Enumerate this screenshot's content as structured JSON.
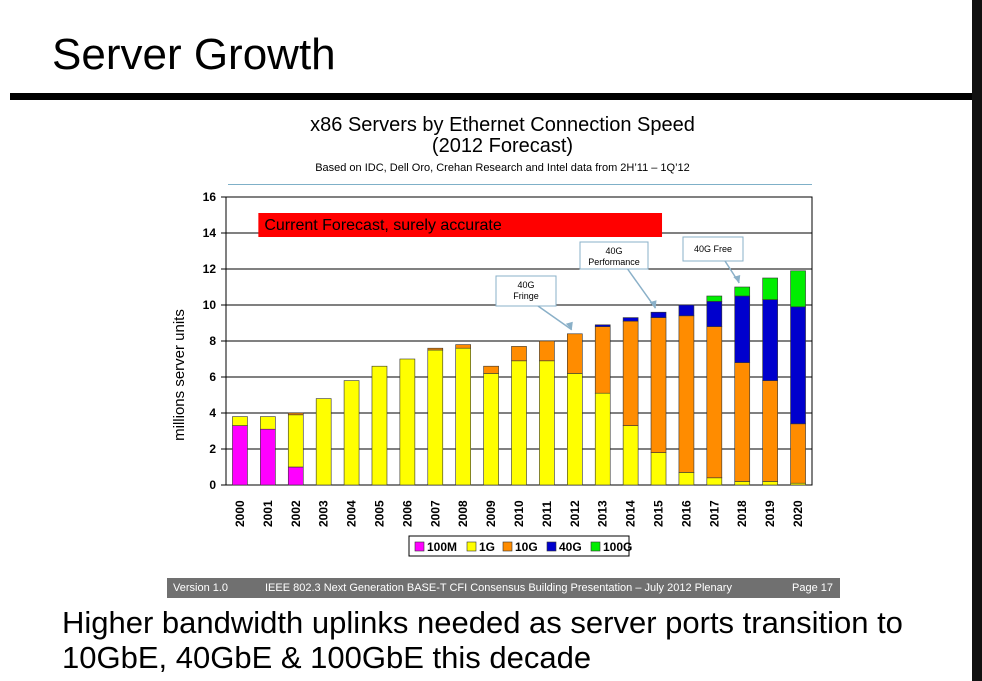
{
  "slide": {
    "title": "Server Growth",
    "bottom_text_line1": "Higher bandwidth uplinks needed as server ports transition to",
    "bottom_text_line2": "10GbE, 40GbE & 100GbE this decade"
  },
  "footer": {
    "version": "Version 1.0",
    "center": "IEEE 802.3 Next Generation BASE-T CFI Consensus Building Presentation – July 2012 Plenary",
    "page": "Page 17"
  },
  "chart_data": {
    "type": "bar",
    "stacked": true,
    "title_line1": "x86 Servers by Ethernet Connection Speed",
    "title_line2": "(2012 Forecast)",
    "subtitle": "Based on IDC, Dell Oro, Crehan Research and Intel data from 2H’11 – 1Q’12",
    "xlabel": "",
    "ylabel": "millions server units",
    "ylim": [
      0,
      16
    ],
    "yticks": [
      0,
      2,
      4,
      6,
      8,
      10,
      12,
      14,
      16
    ],
    "grid": true,
    "legend_position": "bottom",
    "categories": [
      "2000",
      "2001",
      "2002",
      "2003",
      "2004",
      "2005",
      "2006",
      "2007",
      "2008",
      "2009",
      "2010",
      "2011",
      "2012",
      "2013",
      "2014",
      "2015",
      "2016",
      "2017",
      "2018",
      "2019",
      "2020"
    ],
    "series": [
      {
        "name": "100M",
        "color": "#ff00ff",
        "values": [
          3.3,
          3.1,
          1.0,
          0,
          0,
          0,
          0,
          0,
          0,
          0,
          0,
          0,
          0,
          0,
          0,
          0,
          0,
          0,
          0,
          0,
          0
        ]
      },
      {
        "name": "1G",
        "color": "#ffff00",
        "values": [
          0.5,
          0.7,
          2.9,
          4.8,
          5.8,
          6.6,
          7.0,
          7.5,
          7.6,
          6.2,
          6.9,
          6.9,
          6.2,
          5.1,
          3.3,
          1.8,
          0.7,
          0.4,
          0.2,
          0.2,
          0.1
        ]
      },
      {
        "name": "10G",
        "color": "#ff8c00",
        "values": [
          0,
          0,
          0.1,
          0,
          0,
          0,
          0,
          0.1,
          0.2,
          0.4,
          0.8,
          1.1,
          2.2,
          3.7,
          5.8,
          7.5,
          8.7,
          8.4,
          6.6,
          5.6,
          3.3
        ]
      },
      {
        "name": "40G",
        "color": "#0000cd",
        "values": [
          0,
          0,
          0,
          0,
          0,
          0,
          0,
          0,
          0,
          0,
          0,
          0,
          0,
          0.1,
          0.2,
          0.3,
          0.6,
          1.4,
          3.7,
          4.5,
          6.5
        ]
      },
      {
        "name": "100G",
        "color": "#00ee00",
        "values": [
          0,
          0,
          0,
          0,
          0,
          0,
          0,
          0,
          0,
          0,
          0,
          0,
          0,
          0,
          0,
          0,
          0,
          0.3,
          0.5,
          1.2,
          2.0
        ]
      }
    ],
    "banner": {
      "text": "Current Forecast, surely accurate",
      "color": "#ff0000",
      "from_category": "2001",
      "to_category": "2015",
      "y": 15.0
    },
    "annotations": [
      {
        "line1": "40G",
        "line2": "Fringe",
        "at_y": 10.7,
        "x_category": "2010",
        "arrow_to": "2012"
      },
      {
        "line1": "40G",
        "line2": "Performance",
        "at_y": 12.8,
        "x_category": "2014",
        "arrow_to": "2015"
      },
      {
        "line1": "40G Free",
        "line2": "",
        "at_y": 13.3,
        "x_category": "2017.5",
        "arrow_to": "2018"
      }
    ]
  }
}
